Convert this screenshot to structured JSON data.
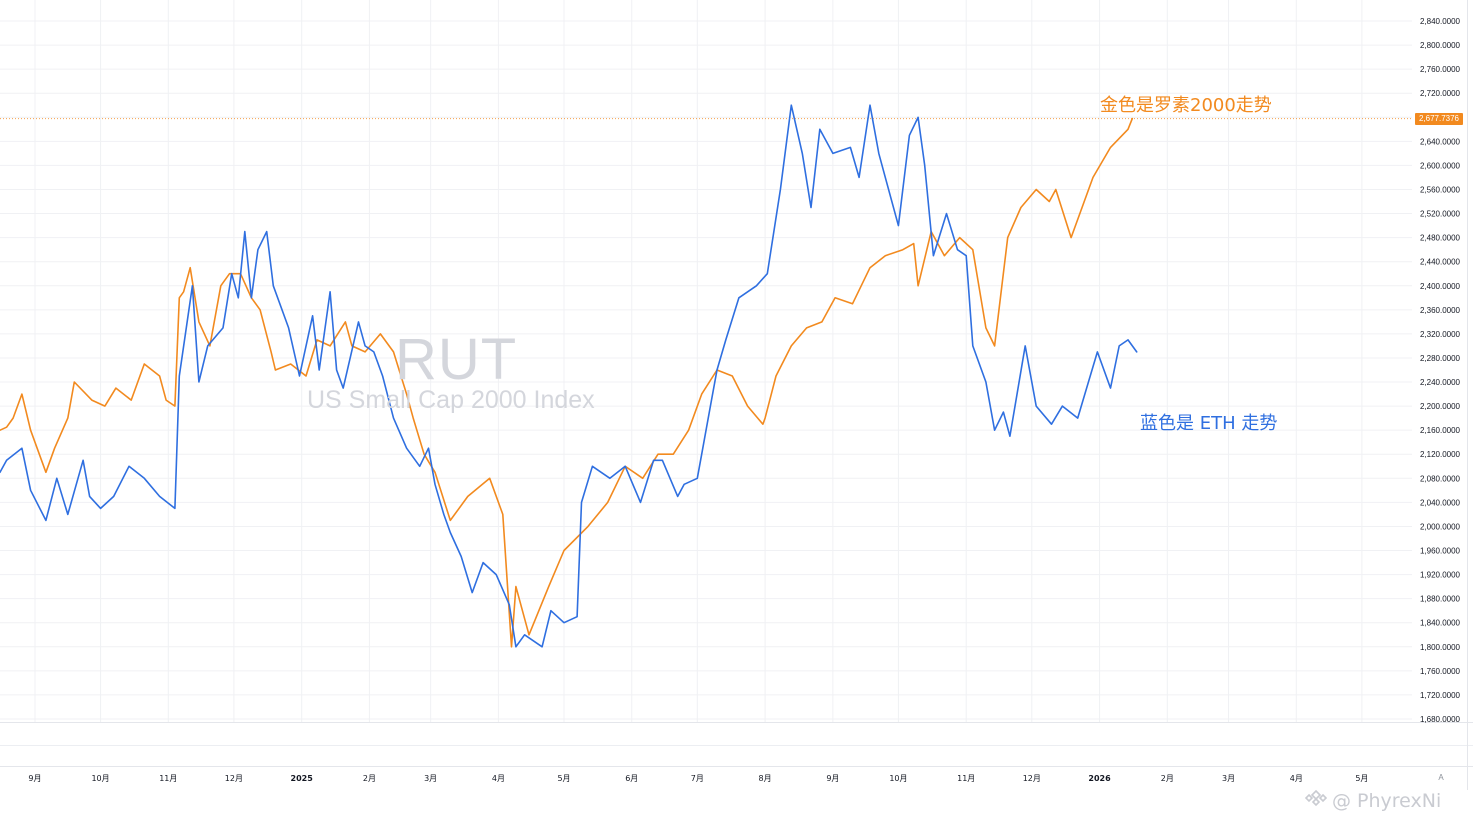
{
  "colors": {
    "rut_line": "#f28a1f",
    "eth_line": "#2f6fe0",
    "grid": "#f0f1f4",
    "axis_text": "#131722",
    "watermark": "#d4d6dc",
    "price_label_bg": "#f28a1f",
    "annotation_gold": "#f28a1f",
    "annotation_blue": "#2f6fe0"
  },
  "watermark": {
    "symbol": "RUT",
    "description": "US Small Cap 2000 Index"
  },
  "annotations": {
    "gold": "金色是罗素2000走势",
    "blue": "蓝色是 ETH 走势"
  },
  "signature": {
    "icon": "binance-square-logo-icon",
    "text": "@ PhyrexNi"
  },
  "auto_scale_label": "A",
  "chart_data": {
    "type": "line",
    "symbol": "RUT",
    "title": "",
    "xlabel": "",
    "ylabel": "",
    "grid": true,
    "ylim": [
      1680,
      2840
    ],
    "y_ticks": [
      "2,840.0000",
      "2,800.0000",
      "2,760.0000",
      "2,720.0000",
      "2,680.0000",
      "2,640.0000",
      "2,600.0000",
      "2,560.0000",
      "2,520.0000",
      "2,480.0000",
      "2,440.0000",
      "2,400.0000",
      "2,360.0000",
      "2,320.0000",
      "2,280.0000",
      "2,240.0000",
      "2,200.0000",
      "2,160.0000",
      "2,120.0000",
      "2,080.0000",
      "2,040.0000",
      "2,000.0000",
      "1,960.0000",
      "1,920.0000",
      "1,880.0000",
      "1,840.0000",
      "1,800.0000",
      "1,760.0000",
      "1,720.0000",
      "1,680.0000"
    ],
    "y_tick_values": [
      2840,
      2800,
      2760,
      2720,
      2680,
      2640,
      2600,
      2560,
      2520,
      2480,
      2440,
      2400,
      2360,
      2320,
      2280,
      2240,
      2200,
      2160,
      2120,
      2080,
      2040,
      2000,
      1960,
      1920,
      1880,
      1840,
      1800,
      1760,
      1720,
      1680
    ],
    "x_ticks": [
      "9月",
      "10月",
      "11月",
      "12月",
      "2025",
      "2月",
      "3月",
      "4月",
      "5月",
      "6月",
      "7月",
      "8月",
      "9月",
      "10月",
      "11月",
      "12月",
      "2026",
      "2月",
      "3月",
      "4月",
      "5月"
    ],
    "x_tick_bold": [
      false,
      false,
      false,
      false,
      true,
      false,
      false,
      false,
      false,
      false,
      false,
      false,
      false,
      false,
      false,
      false,
      true,
      false,
      false,
      false,
      false
    ],
    "x_tick_dates": [
      "2024-09-01",
      "2024-10-01",
      "2024-11-01",
      "2024-12-01",
      "2025-01-01",
      "2025-02-01",
      "2025-03-01",
      "2025-04-01",
      "2025-05-01",
      "2025-06-01",
      "2025-07-01",
      "2025-08-01",
      "2025-09-01",
      "2025-10-01",
      "2025-11-01",
      "2025-12-01",
      "2026-01-01",
      "2026-02-01",
      "2026-03-01",
      "2026-04-01",
      "2026-05-01"
    ],
    "last_price_label": "2,677.7376",
    "last_price_value": 2677.7376,
    "series": [
      {
        "key": "rut",
        "x": [
          "2024-08-16",
          "2024-08-19",
          "2024-08-22",
          "2024-08-26",
          "2024-08-30",
          "2024-09-06",
          "2024-09-10",
          "2024-09-16",
          "2024-09-19",
          "2024-09-27",
          "2024-10-03",
          "2024-10-08",
          "2024-10-15",
          "2024-10-21",
          "2024-10-28",
          "2024-10-31",
          "2024-11-04",
          "2024-11-06",
          "2024-11-08",
          "2024-11-11",
          "2024-11-15",
          "2024-11-20",
          "2024-11-25",
          "2024-11-29",
          "2024-12-04",
          "2024-12-09",
          "2024-12-13",
          "2024-12-18",
          "2024-12-20",
          "2024-12-27",
          "2025-01-03",
          "2025-01-08",
          "2025-01-14",
          "2025-01-21",
          "2025-01-24",
          "2025-01-30",
          "2025-02-06",
          "2025-02-12",
          "2025-02-18",
          "2025-02-21",
          "2025-02-26",
          "2025-03-03",
          "2025-03-10",
          "2025-03-18",
          "2025-03-28",
          "2025-04-03",
          "2025-04-07",
          "2025-04-09",
          "2025-04-15",
          "2025-04-24",
          "2025-05-01",
          "2025-05-12",
          "2025-05-21",
          "2025-05-29",
          "2025-06-06",
          "2025-06-13",
          "2025-06-20",
          "2025-06-27",
          "2025-07-03",
          "2025-07-10",
          "2025-07-17",
          "2025-07-24",
          "2025-07-31",
          "2025-08-01",
          "2025-08-06",
          "2025-08-13",
          "2025-08-20",
          "2025-08-27",
          "2025-09-02",
          "2025-09-10",
          "2025-09-18",
          "2025-09-25",
          "2025-10-03",
          "2025-10-08",
          "2025-10-10",
          "2025-10-16",
          "2025-10-22",
          "2025-10-29",
          "2025-11-04",
          "2025-11-10",
          "2025-11-14",
          "2025-11-20",
          "2025-11-26",
          "2025-12-03",
          "2025-12-09",
          "2025-12-12",
          "2025-12-19",
          "2025-12-29",
          "2026-01-06",
          "2026-01-14",
          "2026-01-16"
        ],
        "values": [
          2160,
          2165,
          2180,
          2220,
          2160,
          2090,
          2130,
          2180,
          2240,
          2210,
          2200,
          2230,
          2210,
          2270,
          2250,
          2210,
          2200,
          2380,
          2390,
          2430,
          2340,
          2300,
          2400,
          2420,
          2420,
          2380,
          2360,
          2290,
          2260,
          2270,
          2250,
          2310,
          2300,
          2340,
          2300,
          2290,
          2320,
          2290,
          2220,
          2180,
          2120,
          2090,
          2010,
          2050,
          2080,
          2020,
          1800,
          1900,
          1820,
          1900,
          1960,
          2000,
          2040,
          2100,
          2080,
          2120,
          2120,
          2160,
          2220,
          2260,
          2250,
          2200,
          2170,
          2180,
          2250,
          2300,
          2330,
          2340,
          2380,
          2370,
          2430,
          2450,
          2460,
          2470,
          2400,
          2490,
          2450,
          2480,
          2460,
          2330,
          2300,
          2480,
          2530,
          2560,
          2540,
          2560,
          2480,
          2580,
          2630,
          2660,
          2677.7376
        ]
      },
      {
        "key": "eth",
        "x": [
          "2024-08-16",
          "2024-08-19",
          "2024-08-26",
          "2024-08-30",
          "2024-09-06",
          "2024-09-11",
          "2024-09-16",
          "2024-09-23",
          "2024-09-26",
          "2024-10-01",
          "2024-10-07",
          "2024-10-14",
          "2024-10-21",
          "2024-10-28",
          "2024-11-04",
          "2024-11-06",
          "2024-11-12",
          "2024-11-15",
          "2024-11-19",
          "2024-11-26",
          "2024-11-30",
          "2024-12-03",
          "2024-12-06",
          "2024-12-09",
          "2024-12-12",
          "2024-12-16",
          "2024-12-19",
          "2024-12-26",
          "2024-12-31",
          "2025-01-06",
          "2025-01-09",
          "2025-01-14",
          "2025-01-17",
          "2025-01-20",
          "2025-01-27",
          "2025-01-30",
          "2025-02-03",
          "2025-02-07",
          "2025-02-12",
          "2025-02-18",
          "2025-02-24",
          "2025-02-28",
          "2025-03-03",
          "2025-03-07",
          "2025-03-10",
          "2025-03-15",
          "2025-03-20",
          "2025-03-25",
          "2025-03-31",
          "2025-04-06",
          "2025-04-09",
          "2025-04-13",
          "2025-04-21",
          "2025-04-25",
          "2025-05-01",
          "2025-05-07",
          "2025-05-09",
          "2025-05-14",
          "2025-05-22",
          "2025-05-29",
          "2025-06-05",
          "2025-06-11",
          "2025-06-15",
          "2025-06-22",
          "2025-06-25",
          "2025-07-01",
          "2025-07-03",
          "2025-07-07",
          "2025-07-10",
          "2025-07-14",
          "2025-07-20",
          "2025-07-28",
          "2025-08-02",
          "2025-08-08",
          "2025-08-13",
          "2025-08-18",
          "2025-08-22",
          "2025-08-26",
          "2025-09-01",
          "2025-09-09",
          "2025-09-13",
          "2025-09-18",
          "2025-09-22",
          "2025-09-25",
          "2025-10-01",
          "2025-10-06",
          "2025-10-10",
          "2025-10-13",
          "2025-10-17",
          "2025-10-23",
          "2025-10-28",
          "2025-11-01",
          "2025-11-04",
          "2025-11-10",
          "2025-11-14",
          "2025-11-18",
          "2025-11-21",
          "2025-11-28",
          "2025-12-03",
          "2025-12-10",
          "2025-12-15",
          "2025-12-22",
          "2025-12-31",
          "2026-01-06",
          "2026-01-10",
          "2026-01-14",
          "2026-01-18"
        ],
        "values": [
          2090,
          2110,
          2130,
          2060,
          2010,
          2080,
          2020,
          2110,
          2050,
          2030,
          2050,
          2100,
          2080,
          2050,
          2030,
          2250,
          2400,
          2240,
          2300,
          2330,
          2420,
          2380,
          2490,
          2380,
          2460,
          2490,
          2400,
          2330,
          2250,
          2350,
          2260,
          2390,
          2260,
          2230,
          2340,
          2300,
          2290,
          2250,
          2180,
          2130,
          2100,
          2130,
          2070,
          2020,
          1990,
          1950,
          1890,
          1940,
          1920,
          1870,
          1800,
          1820,
          1800,
          1860,
          1840,
          1850,
          2040,
          2100,
          2080,
          2100,
          2040,
          2110,
          2110,
          2050,
          2070,
          2080,
          2120,
          2200,
          2260,
          2310,
          2380,
          2400,
          2420,
          2560,
          2700,
          2620,
          2530,
          2660,
          2620,
          2630,
          2580,
          2700,
          2620,
          2580,
          2500,
          2650,
          2680,
          2600,
          2450,
          2520,
          2460,
          2450,
          2300,
          2240,
          2160,
          2190,
          2150,
          2300,
          2200,
          2170,
          2200,
          2180,
          2290,
          2230,
          2300,
          2310,
          2290
        ]
      }
    ]
  }
}
